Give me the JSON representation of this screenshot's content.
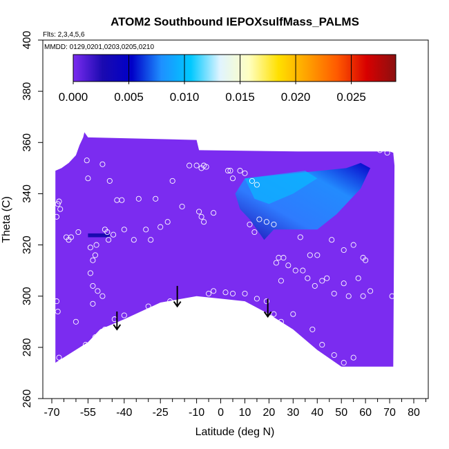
{
  "chart_data": {
    "type": "heatmap",
    "title": "ATOM2 Southbound IEPOXsulfMass_PALMS",
    "flights_note": "Flts: 2,3,4,5,6",
    "dates_note": "MMDD: 0129,0201,0203,0205,0210",
    "xlabel": "Latitude (deg N)",
    "ylabel": "Theta (C)",
    "xlim": [
      -70,
      85
    ],
    "ylim": [
      260,
      400
    ],
    "x_ticks": [
      -70,
      -55,
      -40,
      -25,
      -10,
      0,
      10,
      20,
      30,
      40,
      50,
      60,
      70,
      80
    ],
    "x_minor_ticks": [
      -65,
      -60,
      -50,
      -45,
      -35,
      -30,
      -20,
      -15,
      -5,
      5,
      15,
      25,
      35,
      45,
      55,
      65,
      75,
      85
    ],
    "y_ticks": [
      260,
      280,
      300,
      320,
      340,
      360,
      380,
      400
    ],
    "background_value": 0.0005,
    "colorbar": {
      "range": [
        0,
        0.029
      ],
      "ticks": [
        "0.000",
        "0.005",
        "0.010",
        "0.015",
        "0.020",
        "0.025"
      ],
      "tick_values": [
        0,
        0.005,
        0.01,
        0.015,
        0.02,
        0.025
      ],
      "colors": [
        "#7b2cf0",
        "#1a0ab0",
        "#0000c8",
        "#1e90ff",
        "#00c8ff",
        "#e0f4ff",
        "#ffffc0",
        "#ffe000",
        "#ffa000",
        "#ff5a00",
        "#d80000",
        "#8b1010"
      ]
    },
    "domain_top": [
      [
        -68.5,
        349
      ],
      [
        -66,
        350
      ],
      [
        -63,
        352
      ],
      [
        -60,
        355
      ],
      [
        -58.5,
        359
      ],
      [
        -57,
        362
      ],
      [
        -56.5,
        364
      ],
      [
        -55,
        362
      ],
      [
        -10,
        361
      ],
      [
        -9,
        357
      ],
      [
        32,
        356.5
      ],
      [
        70,
        356.5
      ],
      [
        71.5,
        356
      ],
      [
        72,
        351
      ]
    ],
    "domain_bottom": [
      [
        -68.5,
        274
      ],
      [
        -55,
        282
      ],
      [
        -50,
        287
      ],
      [
        -40,
        291
      ],
      [
        -25,
        297.5
      ],
      [
        -10,
        300
      ],
      [
        0,
        299
      ],
      [
        10,
        298
      ],
      [
        20,
        293
      ],
      [
        30,
        287
      ],
      [
        35,
        283
      ],
      [
        40,
        279
      ],
      [
        50,
        272.5
      ],
      [
        71.5,
        272.5
      ]
    ],
    "plume": {
      "polygon": [
        [
          6,
          340
        ],
        [
          10,
          346
        ],
        [
          52,
          350
        ],
        [
          58,
          352
        ],
        [
          62,
          350
        ],
        [
          58,
          342
        ],
        [
          48,
          332
        ],
        [
          40,
          326
        ],
        [
          30,
          326
        ],
        [
          22,
          326
        ],
        [
          18,
          322
        ],
        [
          15,
          326
        ],
        [
          12,
          330
        ],
        [
          8,
          334
        ]
      ],
      "core": [
        [
          10,
          346
        ],
        [
          35,
          349
        ],
        [
          40,
          346
        ],
        [
          30,
          340
        ],
        [
          20,
          336
        ],
        [
          14,
          338
        ]
      ],
      "value": 0.009,
      "core_value": 0.011
    },
    "small_feature": {
      "x": [
        -55,
        -46
      ],
      "y": [
        323,
        324.5
      ],
      "value": 0.004
    },
    "arrows": [
      {
        "lat": -43,
        "theta_top": 294,
        "theta_bottom": 287
      },
      {
        "lat": -18,
        "theta_top": 304,
        "theta_bottom": 296
      },
      {
        "lat": 19.5,
        "theta_top": 299,
        "theta_bottom": 292
      }
    ],
    "points": [
      [
        -68,
        331
      ],
      [
        -67.5,
        336
      ],
      [
        -67,
        337
      ],
      [
        -66.5,
        334
      ],
      [
        -68,
        298
      ],
      [
        -67.5,
        294
      ],
      [
        -67,
        276
      ],
      [
        -64,
        323
      ],
      [
        -63,
        322
      ],
      [
        -62,
        323
      ],
      [
        -59,
        325
      ],
      [
        -55.5,
        353
      ],
      [
        -55,
        346
      ],
      [
        -49,
        351.5
      ],
      [
        -54,
        319
      ],
      [
        -52,
        316
      ],
      [
        -51.5,
        320
      ],
      [
        -53,
        314
      ],
      [
        -48,
        326
      ],
      [
        -47,
        325
      ],
      [
        -46.5,
        322
      ],
      [
        -54,
        309
      ],
      [
        -53,
        304
      ],
      [
        -51,
        302
      ],
      [
        -49,
        300
      ],
      [
        -53,
        297
      ],
      [
        -46,
        345
      ],
      [
        -43,
        337.5
      ],
      [
        -41,
        337.5
      ],
      [
        -44.5,
        324
      ],
      [
        -40,
        326
      ],
      [
        -36,
        322
      ],
      [
        -34,
        338
      ],
      [
        -27,
        338
      ],
      [
        -31,
        326
      ],
      [
        -29,
        322
      ],
      [
        -25,
        327
      ],
      [
        -22,
        329
      ],
      [
        -20,
        345
      ],
      [
        -16,
        335
      ],
      [
        -13,
        351
      ],
      [
        -10,
        351
      ],
      [
        -8,
        350
      ],
      [
        -7,
        351
      ],
      [
        -6,
        350.5
      ],
      [
        -9,
        333
      ],
      [
        -8,
        331
      ],
      [
        -7,
        329
      ],
      [
        -3,
        332.5
      ],
      [
        3,
        349
      ],
      [
        4,
        349
      ],
      [
        5,
        346
      ],
      [
        8,
        349
      ],
      [
        10,
        348
      ],
      [
        13,
        345
      ],
      [
        15,
        343.5
      ],
      [
        12,
        328
      ],
      [
        14,
        325
      ],
      [
        16,
        330
      ],
      [
        19,
        329
      ],
      [
        22,
        328
      ],
      [
        -5,
        301
      ],
      [
        5,
        301
      ],
      [
        -3,
        302
      ],
      [
        2,
        301.5
      ],
      [
        -21,
        298
      ],
      [
        -30,
        296
      ],
      [
        -40,
        292.5
      ],
      [
        -44,
        291
      ],
      [
        -48,
        287
      ],
      [
        -52,
        284
      ],
      [
        -56,
        281
      ],
      [
        -60,
        290
      ],
      [
        23,
        313
      ],
      [
        24,
        315
      ],
      [
        26,
        315
      ],
      [
        28,
        312
      ],
      [
        31,
        310
      ],
      [
        34,
        310
      ],
      [
        36,
        307
      ],
      [
        39,
        304
      ],
      [
        42,
        306
      ],
      [
        44,
        307
      ],
      [
        47,
        301
      ],
      [
        51,
        305
      ],
      [
        53,
        300
      ],
      [
        57,
        307
      ],
      [
        59,
        300
      ],
      [
        62,
        302
      ],
      [
        59,
        315
      ],
      [
        60,
        314
      ],
      [
        66,
        357
      ],
      [
        69,
        356
      ],
      [
        25,
        306
      ],
      [
        30,
        293
      ],
      [
        38,
        287
      ],
      [
        42,
        281
      ],
      [
        47,
        277
      ],
      [
        51,
        274
      ],
      [
        55,
        276
      ],
      [
        71,
        300
      ],
      [
        33,
        323
      ],
      [
        37,
        316
      ],
      [
        40,
        316
      ],
      [
        46,
        322
      ],
      [
        51,
        318
      ],
      [
        55,
        320
      ],
      [
        10,
        301
      ],
      [
        15,
        299
      ],
      [
        19,
        298
      ],
      [
        22,
        293
      ],
      [
        25,
        290
      ]
    ]
  }
}
